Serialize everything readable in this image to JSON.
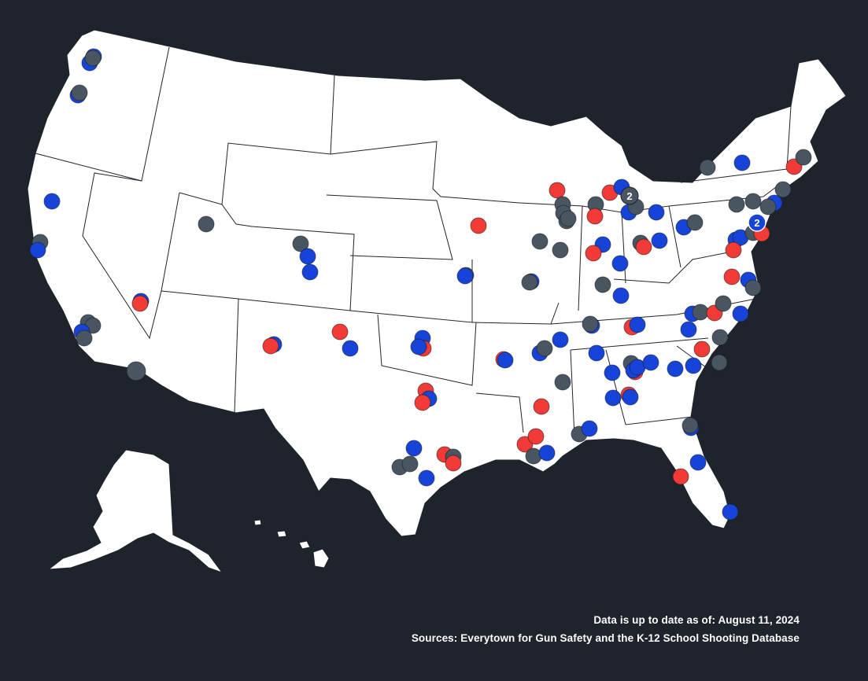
{
  "footer": {
    "updated": "Data is up to date as of: August 11, 2024",
    "sources": "Sources: Everytown for Gun Safety and the K-12 School Shooting Database"
  },
  "colors": {
    "background": "#1f232b",
    "land": "#ffffff",
    "category_red": "#f23a36",
    "category_blue": "#1644d8",
    "category_gray": "#4a5562"
  },
  "clusters": [
    {
      "label": "2"
    },
    {
      "label": "2"
    }
  ]
}
